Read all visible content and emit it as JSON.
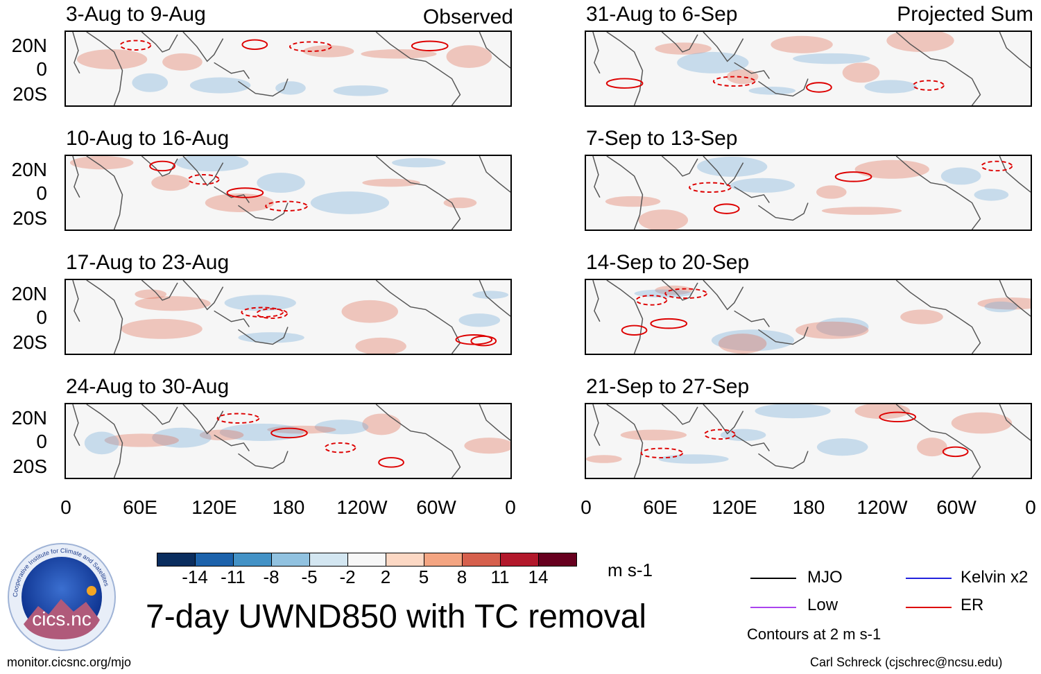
{
  "chart_data": {
    "type": "heatmap",
    "title": "7-day UWND850 with TC removal",
    "units": "m s-1",
    "variable": "850 hPa zonal wind anomaly (shaded) with wave-filtered contours",
    "columns": [
      {
        "label": "Observed",
        "panels": [
          "3-Aug to 9-Aug",
          "10-Aug to 16-Aug",
          "17-Aug to 23-Aug",
          "24-Aug to 30-Aug"
        ]
      },
      {
        "label": "Projected Sum",
        "panels": [
          "31-Aug to 6-Sep",
          "7-Sep to 13-Sep",
          "14-Sep to 20-Sep",
          "21-Sep to 27-Sep"
        ]
      }
    ],
    "y_tick_labels": [
      "20N",
      "0",
      "20S"
    ],
    "x_tick_labels": [
      "0",
      "60E",
      "120E",
      "180",
      "120W",
      "60W",
      "0"
    ],
    "x_range_deg": [
      0,
      360
    ],
    "y_range_deg": [
      -30,
      30
    ],
    "colorbar": {
      "labels": [
        "-14",
        "-11",
        "-8",
        "-5",
        "-2",
        "2",
        "5",
        "8",
        "11",
        "14"
      ],
      "colors": [
        "#0a2d5e",
        "#1c62ab",
        "#4392c6",
        "#91c2e0",
        "#d3e6f1",
        "#f7f7f7",
        "#fcd8c4",
        "#f4a582",
        "#d6604d",
        "#b2182b",
        "#67001f"
      ]
    },
    "contour_legend": [
      {
        "name": "MJO",
        "color": "#000000"
      },
      {
        "name": "Kelvin x2",
        "color": "#2222dd"
      },
      {
        "name": "Low",
        "color": "#aa44ee"
      },
      {
        "name": "ER",
        "color": "#dd0000"
      }
    ],
    "contour_note": "Contours at 2 m s-1"
  },
  "footer": {
    "url": "monitor.cicsnc.org/mjo",
    "credit": "Carl Schreck (cjschrec@ncsu.edu)"
  },
  "logo": {
    "text": "cics.nc",
    "ring_text": "Cooperative Institute for Climate and Satellites"
  },
  "colors": {
    "coast": "#555555",
    "positive": "#e06a50",
    "negative": "#6fa8d6",
    "contour": "#dd0000"
  }
}
